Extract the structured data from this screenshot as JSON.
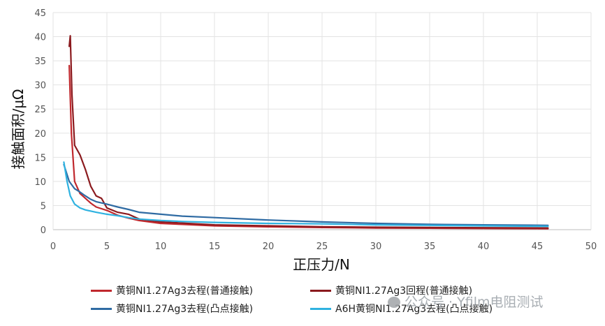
{
  "chart_data": {
    "type": "line",
    "title": "",
    "xlabel": "正压力/N",
    "ylabel": "接触面积/μΩ",
    "xlim": [
      0,
      50
    ],
    "ylim": [
      0,
      45
    ],
    "xticks": [
      0,
      5,
      10,
      15,
      20,
      25,
      30,
      35,
      40,
      45,
      50
    ],
    "yticks": [
      0,
      5,
      10,
      15,
      20,
      25,
      30,
      35,
      40,
      45
    ],
    "grid": true,
    "legend_position": "bottom",
    "series": [
      {
        "name": "黄铜NI1.27Ag3去程(普通接触)",
        "color": "#c0282d",
        "x": [
          1.5,
          1.7,
          2.0,
          2.5,
          3,
          3.5,
          4,
          5,
          6,
          7,
          8,
          10,
          12,
          15,
          20,
          25,
          30,
          35,
          40,
          46
        ],
        "y": [
          34,
          20,
          10,
          7.5,
          6.5,
          5.5,
          4.7,
          4.0,
          3.0,
          2.4,
          1.9,
          1.3,
          1.1,
          0.8,
          0.6,
          0.45,
          0.35,
          0.3,
          0.25,
          0.2
        ]
      },
      {
        "name": "黄铜NI1.27Ag3回程(普通接触)",
        "color": "#8b1a1e",
        "x": [
          1.5,
          1.6,
          1.75,
          2.0,
          2.5,
          3.0,
          3.5,
          4.0,
          4.5,
          5,
          6,
          7,
          8,
          10,
          15,
          20,
          25,
          30,
          35,
          40,
          46
        ],
        "y": [
          38,
          40.2,
          28,
          17.5,
          15.5,
          12.5,
          9,
          7,
          6.5,
          4.5,
          3.6,
          3.2,
          2.2,
          1.6,
          1.0,
          0.8,
          0.6,
          0.5,
          0.45,
          0.4,
          0.35
        ]
      },
      {
        "name": "黄铜NI1.27Ag3去程(凸点接触)",
        "color": "#2f6ba3",
        "x": [
          1.0,
          1.5,
          2.0,
          2.5,
          3.0,
          3.5,
          4.0,
          5,
          6,
          7,
          8,
          10,
          12,
          15,
          20,
          25,
          30,
          35,
          40,
          46
        ],
        "y": [
          13.5,
          10,
          8.5,
          7.8,
          7.0,
          6.3,
          5.8,
          5.3,
          4.7,
          4.2,
          3.6,
          3.2,
          2.8,
          2.5,
          2.0,
          1.6,
          1.3,
          1.1,
          1.0,
          0.9
        ]
      },
      {
        "name": "A6H黄铜NI1.27Ag3去程(凸点接触)",
        "color": "#2fb2e0",
        "x": [
          1.0,
          1.3,
          1.6,
          2.0,
          2.5,
          3,
          4,
          5,
          6,
          7,
          8,
          10,
          12,
          15,
          20,
          25,
          30,
          35,
          40,
          46
        ],
        "y": [
          14,
          10,
          7,
          5.3,
          4.5,
          4.1,
          3.6,
          3.2,
          2.9,
          2.5,
          2.2,
          1.9,
          1.7,
          1.5,
          1.3,
          1.2,
          1.0,
          0.9,
          0.8,
          0.7
        ]
      }
    ]
  },
  "watermark": {
    "text": "公众号 · Yfilm电阻测试",
    "icon": "wechat-icon"
  }
}
